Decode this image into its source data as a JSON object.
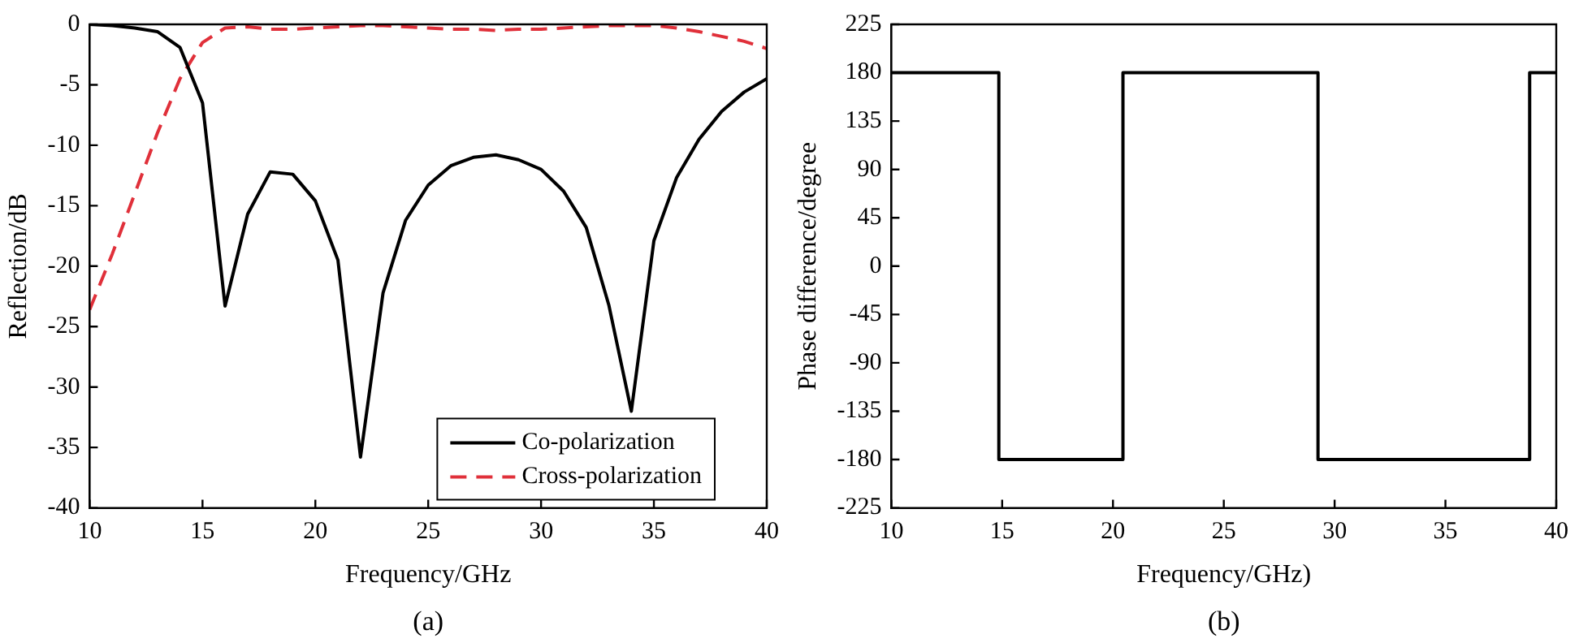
{
  "chart_data": [
    {
      "type": "line",
      "xlabel": "Frequency/GHz",
      "ylabel": "Reflection/dB",
      "x": [
        10,
        11,
        12,
        13,
        14,
        15,
        16,
        17,
        18,
        19,
        20,
        21,
        22,
        23,
        24,
        25,
        26,
        27,
        28,
        29,
        30,
        31,
        32,
        33,
        34,
        35,
        36,
        37,
        38,
        39,
        40
      ],
      "series": [
        {
          "name": "Co-polarization",
          "color": "#000000",
          "line_style": "solid",
          "values": [
            0,
            -0.1,
            -0.3,
            -0.6,
            -1.9,
            -6.5,
            -23.3,
            -15.7,
            -12.2,
            -12.4,
            -14.6,
            -19.5,
            -35.8,
            -22.2,
            -16.2,
            -13.3,
            -11.7,
            -11,
            -10.8,
            -11.2,
            -12,
            -13.8,
            -16.8,
            -23.2,
            -32,
            -17.9,
            -12.7,
            -9.5,
            -7.2,
            -5.6,
            -4.5
          ]
        },
        {
          "name": "Cross-polarization",
          "color": "#e0303a",
          "line_style": "dashed",
          "values": [
            -23.6,
            -19,
            -14,
            -9,
            -4.5,
            -1.5,
            -0.3,
            -0.2,
            -0.4,
            -0.4,
            -0.3,
            -0.2,
            -0.1,
            -0.1,
            -0.2,
            -0.3,
            -0.4,
            -0.4,
            -0.5,
            -0.4,
            -0.4,
            -0.3,
            -0.2,
            -0.1,
            -0.1,
            -0.1,
            -0.3,
            -0.6,
            -1,
            -1.4,
            -2
          ]
        }
      ],
      "xlim": [
        10,
        40
      ],
      "xticks": [
        10,
        15,
        20,
        25,
        30,
        35,
        40
      ],
      "ylim": [
        -40,
        0
      ],
      "yticks": [
        -40,
        -35,
        -30,
        -25,
        -20,
        -15,
        -10,
        -5,
        0
      ],
      "grid": false,
      "legend": "bottom right",
      "marker": "none",
      "annotations": [
        "(a)"
      ]
    },
    {
      "type": "line",
      "xlabel": "Frequency/GHz)",
      "ylabel": "Phase difference/degree",
      "series": [
        {
          "color": "#000000",
          "line_style": "solid",
          "x": [
            10,
            14.85,
            14.85,
            20.45,
            20.45,
            29.25,
            29.25,
            38.8,
            38.8,
            40
          ],
          "values": [
            180,
            180,
            -180,
            -180,
            180,
            180,
            -180,
            -180,
            180,
            180
          ]
        }
      ],
      "xlim": [
        10,
        40
      ],
      "xticks": [
        10,
        15,
        20,
        25,
        30,
        35,
        40
      ],
      "ylim": [
        -225,
        225
      ],
      "yticks": [
        -225,
        -180,
        -135,
        -90,
        -45,
        0,
        45,
        90,
        135,
        180,
        225
      ],
      "grid": false,
      "legend": false,
      "marker": "none",
      "annotations": [
        "(b)"
      ]
    }
  ]
}
